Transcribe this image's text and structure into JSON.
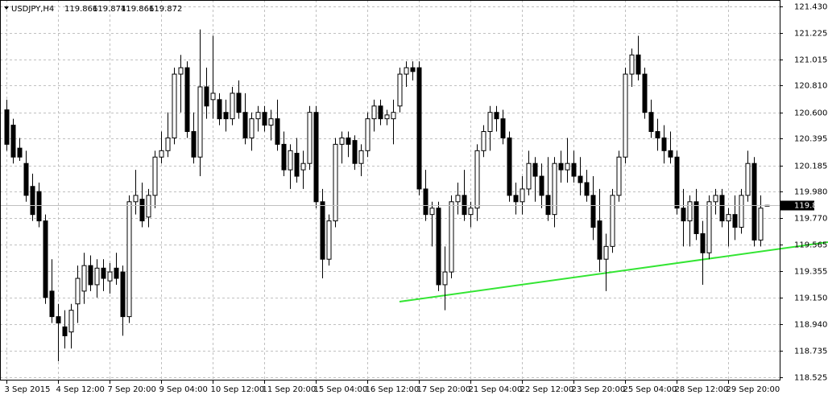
{
  "chart_data": {
    "type": "candlestick",
    "symbol": "USDJPY,H4",
    "grid": true,
    "ylim": [
      118.525,
      121.43
    ],
    "yticks": [
      {
        "value": 121.43,
        "label": "121.430"
      },
      121.225,
      121.015,
      {
        "value": 120.81,
        "label": "120.810"
      },
      {
        "value": 120.6,
        "label": "120.600"
      },
      120.395,
      120.185,
      {
        "value": 119.98,
        "label": "119.980"
      },
      {
        "value": 119.77,
        "label": "119.770"
      },
      119.565,
      119.355,
      {
        "value": 119.15,
        "label": "119.150"
      },
      {
        "value": 118.94,
        "label": "118.940"
      },
      118.735,
      118.525
    ],
    "categories": [
      "3 Sep 2015",
      null,
      null,
      null,
      null,
      null,
      null,
      null,
      "4 Sep 12:00",
      null,
      null,
      null,
      null,
      null,
      null,
      null,
      "7 Sep 20:00",
      null,
      null,
      null,
      null,
      null,
      null,
      null,
      "9 Sep 04:00",
      null,
      null,
      null,
      null,
      null,
      null,
      null,
      "10 Sep 12:00",
      null,
      null,
      null,
      null,
      null,
      null,
      null,
      "11 Sep 20:00",
      null,
      null,
      null,
      null,
      null,
      null,
      null,
      "15 Sep 04:00",
      null,
      null,
      null,
      null,
      null,
      null,
      null,
      "16 Sep 12:00",
      null,
      null,
      null,
      null,
      null,
      null,
      null,
      "17 Sep 20:00",
      null,
      null,
      null,
      null,
      null,
      null,
      null,
      "21 Sep 04:00",
      null,
      null,
      null,
      null,
      null,
      null,
      null,
      "22 Sep 12:00",
      null,
      null,
      null,
      null,
      null,
      null,
      null,
      "23 Sep 20:00",
      null,
      null,
      null,
      null,
      null,
      null,
      null,
      "25 Sep 04:00",
      null,
      null,
      null,
      null,
      null,
      null,
      null,
      "28 Sep 12:00",
      null,
      null,
      null,
      null,
      null,
      null,
      null,
      "29 Sep 20:00",
      null,
      null,
      null,
      null,
      null,
      null
    ],
    "ohlc": [
      [
        120.62,
        120.7,
        120.3,
        120.35
      ],
      [
        120.5,
        120.55,
        120.2,
        120.25
      ],
      [
        120.32,
        120.4,
        120.22,
        120.25
      ],
      [
        120.2,
        120.3,
        119.9,
        119.95
      ],
      [
        120.02,
        120.12,
        119.75,
        119.8
      ],
      [
        119.98,
        120.05,
        119.7,
        119.75
      ],
      [
        119.75,
        119.8,
        119.1,
        119.15
      ],
      [
        119.2,
        119.45,
        118.95,
        119.0
      ],
      [
        119.0,
        119.1,
        118.65,
        118.95
      ],
      [
        118.92,
        119.05,
        118.75,
        118.85
      ],
      [
        118.88,
        119.1,
        118.75,
        119.05
      ],
      [
        119.1,
        119.4,
        118.95,
        119.3
      ],
      [
        119.2,
        119.5,
        119.1,
        119.4
      ],
      [
        119.4,
        119.48,
        119.2,
        119.25
      ],
      [
        119.25,
        119.45,
        119.15,
        119.38
      ],
      [
        119.38,
        119.45,
        119.2,
        119.3
      ],
      [
        119.28,
        119.42,
        119.18,
        119.35
      ],
      [
        119.38,
        119.5,
        119.25,
        119.3
      ],
      [
        119.35,
        119.4,
        118.85,
        119.0
      ],
      [
        119.0,
        119.95,
        118.95,
        119.9
      ],
      [
        119.9,
        120.15,
        119.8,
        119.95
      ],
      [
        119.92,
        120.05,
        119.7,
        119.75
      ],
      [
        119.78,
        120.0,
        119.7,
        119.95
      ],
      [
        119.95,
        120.3,
        119.85,
        120.25
      ],
      [
        120.25,
        120.45,
        120.2,
        120.3
      ],
      [
        120.3,
        120.6,
        120.25,
        120.4
      ],
      [
        120.4,
        120.95,
        120.35,
        120.9
      ],
      [
        120.9,
        121.05,
        120.6,
        120.95
      ],
      [
        120.95,
        121.0,
        120.4,
        120.45
      ],
      [
        120.45,
        120.6,
        120.2,
        120.25
      ],
      [
        120.25,
        121.25,
        120.1,
        120.8
      ],
      [
        120.8,
        120.95,
        120.55,
        120.65
      ],
      [
        120.7,
        121.2,
        120.55,
        120.75
      ],
      [
        120.7,
        120.75,
        120.5,
        120.55
      ],
      [
        120.6,
        120.7,
        120.45,
        120.55
      ],
      [
        120.55,
        120.8,
        120.5,
        120.75
      ],
      [
        120.75,
        120.85,
        120.55,
        120.6
      ],
      [
        120.6,
        120.75,
        120.35,
        120.4
      ],
      [
        120.4,
        120.6,
        120.3,
        120.55
      ],
      [
        120.55,
        120.65,
        120.45,
        120.6
      ],
      [
        120.6,
        120.65,
        120.45,
        120.5
      ],
      [
        120.5,
        120.62,
        120.38,
        120.55
      ],
      [
        120.55,
        120.7,
        120.3,
        120.35
      ],
      [
        120.35,
        120.45,
        120.1,
        120.15
      ],
      [
        120.15,
        120.35,
        120.0,
        120.3
      ],
      [
        120.28,
        120.4,
        120.05,
        120.1
      ],
      [
        120.15,
        120.3,
        120.0,
        120.2
      ],
      [
        120.2,
        120.65,
        120.15,
        120.6
      ],
      [
        120.6,
        120.65,
        119.85,
        119.9
      ],
      [
        119.9,
        120.0,
        119.3,
        119.45
      ],
      [
        119.45,
        119.8,
        119.4,
        119.75
      ],
      [
        119.75,
        120.4,
        119.7,
        120.35
      ],
      [
        120.35,
        120.45,
        120.2,
        120.4
      ],
      [
        120.4,
        120.45,
        120.25,
        120.35
      ],
      [
        120.38,
        120.42,
        120.15,
        120.2
      ],
      [
        120.2,
        120.35,
        120.1,
        120.3
      ],
      [
        120.3,
        120.6,
        120.25,
        120.55
      ],
      [
        120.55,
        120.7,
        120.45,
        120.65
      ],
      [
        120.65,
        120.7,
        120.5,
        120.55
      ],
      [
        120.55,
        120.62,
        120.5,
        120.58
      ],
      [
        120.55,
        120.7,
        120.35,
        120.6
      ],
      [
        120.65,
        120.95,
        120.6,
        120.9
      ],
      [
        120.9,
        121.0,
        120.8,
        120.95
      ],
      [
        120.95,
        121.0,
        120.85,
        120.92
      ],
      [
        120.95,
        121.0,
        119.95,
        120.0
      ],
      [
        120.0,
        120.15,
        119.75,
        119.8
      ],
      [
        119.8,
        119.9,
        119.55,
        119.85
      ],
      [
        119.85,
        119.9,
        119.2,
        119.25
      ],
      [
        119.25,
        119.55,
        119.05,
        119.35
      ],
      [
        119.35,
        119.95,
        119.3,
        119.9
      ],
      [
        119.9,
        120.05,
        119.8,
        119.95
      ],
      [
        119.95,
        120.15,
        119.75,
        119.8
      ],
      [
        119.8,
        119.9,
        119.7,
        119.85
      ],
      [
        119.85,
        120.35,
        119.75,
        120.3
      ],
      [
        120.3,
        120.5,
        120.25,
        120.45
      ],
      [
        120.45,
        120.65,
        120.3,
        120.6
      ],
      [
        120.6,
        120.65,
        120.45,
        120.55
      ],
      [
        120.55,
        120.62,
        120.35,
        120.4
      ],
      [
        120.4,
        120.45,
        119.9,
        119.95
      ],
      [
        119.95,
        120.05,
        119.8,
        119.9
      ],
      [
        119.9,
        120.1,
        119.8,
        120.0
      ],
      [
        120.0,
        120.3,
        119.95,
        120.2
      ],
      [
        120.2,
        120.25,
        119.9,
        120.1
      ],
      [
        120.1,
        120.2,
        119.85,
        119.95
      ],
      [
        119.95,
        120.25,
        119.75,
        119.8
      ],
      [
        119.8,
        120.25,
        119.7,
        120.2
      ],
      [
        120.2,
        120.3,
        120.05,
        120.15
      ],
      [
        120.15,
        120.4,
        120.05,
        120.2
      ],
      [
        120.2,
        120.3,
        120.05,
        120.1
      ],
      [
        120.1,
        120.25,
        119.95,
        120.05
      ],
      [
        120.05,
        120.15,
        119.9,
        119.95
      ],
      [
        119.95,
        120.1,
        119.6,
        119.7
      ],
      [
        119.75,
        120.0,
        119.35,
        119.45
      ],
      [
        119.45,
        119.65,
        119.2,
        119.55
      ],
      [
        119.55,
        120.0,
        119.5,
        119.95
      ],
      [
        119.95,
        120.3,
        119.9,
        120.25
      ],
      [
        120.25,
        120.95,
        120.2,
        120.9
      ],
      [
        120.9,
        121.1,
        120.8,
        121.05
      ],
      [
        121.05,
        121.2,
        120.85,
        120.9
      ],
      [
        120.9,
        120.95,
        120.55,
        120.6
      ],
      [
        120.6,
        120.7,
        120.4,
        120.45
      ],
      [
        120.45,
        120.55,
        120.3,
        120.4
      ],
      [
        120.4,
        120.5,
        120.2,
        120.3
      ],
      [
        120.3,
        120.45,
        120.2,
        120.25
      ],
      [
        120.25,
        120.3,
        119.8,
        119.85
      ],
      [
        119.85,
        120.0,
        119.55,
        119.75
      ],
      [
        119.75,
        119.95,
        119.55,
        119.9
      ],
      [
        119.9,
        120.0,
        119.6,
        119.65
      ],
      [
        119.65,
        119.75,
        119.25,
        119.5
      ],
      [
        119.5,
        119.95,
        119.45,
        119.9
      ],
      [
        119.9,
        120.0,
        119.8,
        119.95
      ],
      [
        119.95,
        120.0,
        119.7,
        119.75
      ],
      [
        119.75,
        119.85,
        119.55,
        119.8
      ],
      [
        119.8,
        119.95,
        119.6,
        119.7
      ],
      [
        119.7,
        120.0,
        119.65,
        119.95
      ],
      [
        119.95,
        120.3,
        119.9,
        120.2
      ],
      [
        120.2,
        120.25,
        119.55,
        119.6
      ],
      [
        119.6,
        119.95,
        119.55,
        119.85
      ],
      [
        119.866,
        119.874,
        119.866,
        119.872
      ]
    ]
  }
}
